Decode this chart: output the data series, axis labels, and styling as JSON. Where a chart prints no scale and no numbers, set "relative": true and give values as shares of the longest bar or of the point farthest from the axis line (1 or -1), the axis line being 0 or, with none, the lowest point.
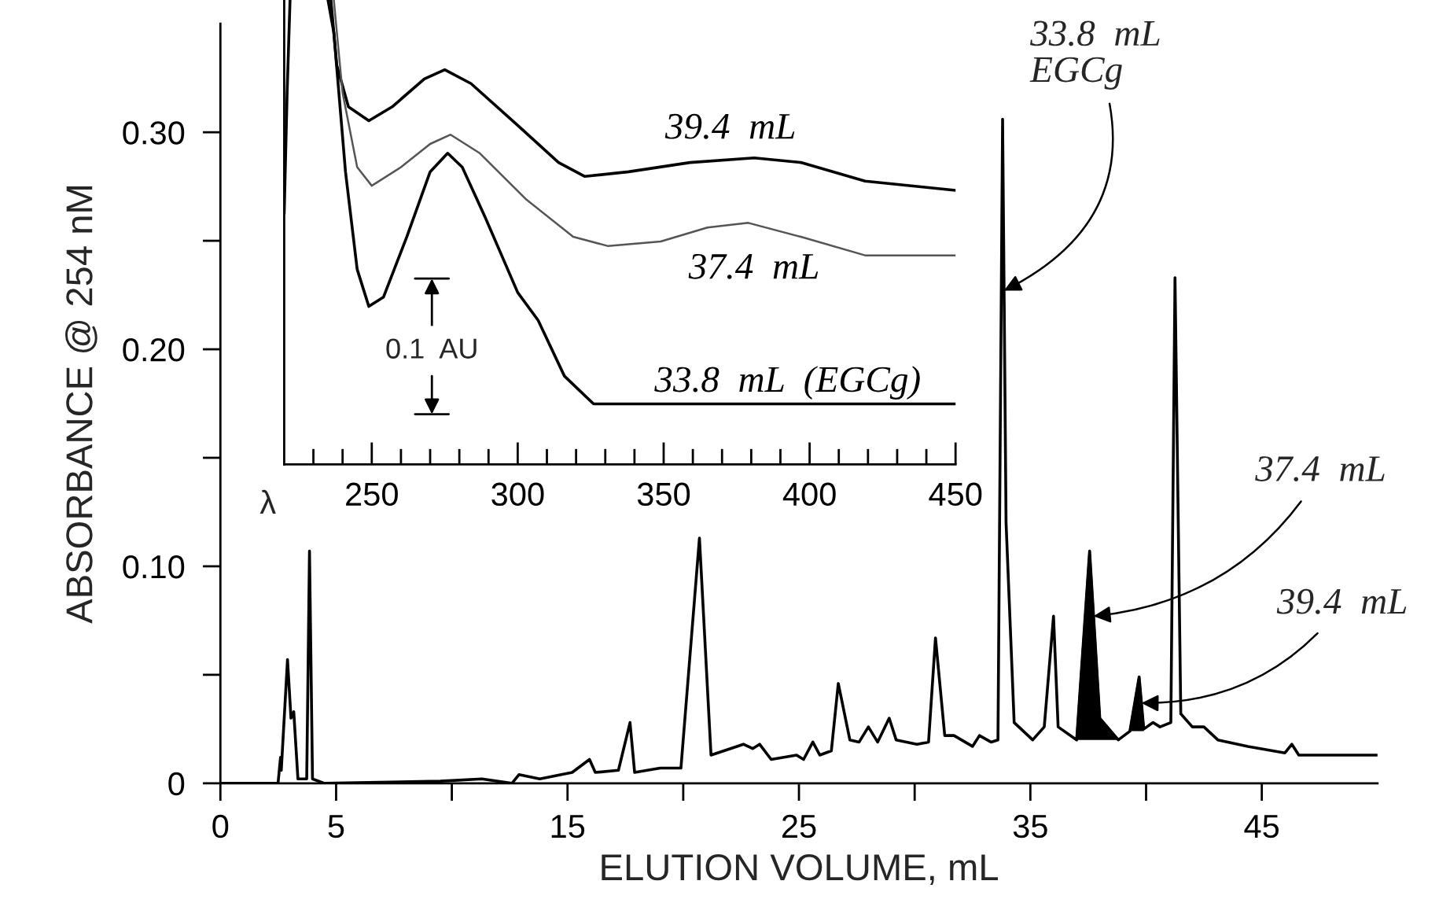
{
  "chart_data": [
    {
      "type": "line",
      "xlabel": "ELUTION VOLUME, mL",
      "ylabel": "ABSORBANCE @ 254 nM",
      "xlim": [
        0,
        50
      ],
      "ylim": [
        0,
        0.35
      ],
      "xticks": [
        0,
        5,
        {
          "value": 10,
          "label": null
        },
        15,
        {
          "value": 20,
          "label": null
        },
        25,
        {
          "value": 30,
          "label": null
        },
        35,
        {
          "value": 40,
          "label": null
        },
        45
      ],
      "yticks": [
        0,
        {
          "value": 0.05,
          "label": null
        },
        {
          "value": 0.1,
          "label": "0.10"
        },
        {
          "value": 0.15,
          "label": null
        },
        {
          "value": 0.2,
          "label": "0.20"
        },
        {
          "value": 0.25,
          "label": null
        },
        {
          "value": 0.3,
          "label": "0.30"
        }
      ],
      "series": [
        {
          "color": "#000000",
          "x": [
            0,
            2.49,
            2.6,
            2.63,
            2.9,
            3.05,
            3.17,
            3.35,
            3.73,
            3.85,
            3.98,
            4.5,
            9.5,
            11.3,
            12.6,
            12.9,
            13.8,
            15.2,
            15.95,
            16.2,
            17.2,
            17.7,
            17.9,
            19.0,
            19.9,
            20.7,
            21.2,
            22.6,
            23.0,
            23.3,
            23.8,
            24.9,
            25.2,
            25.6,
            25.9,
            26.4,
            26.7,
            27.2,
            27.6,
            28.0,
            28.4,
            28.9,
            29.2,
            30.1,
            30.6,
            30.9,
            31.3,
            31.7,
            32.5,
            32.8,
            33.3,
            33.6,
            33.8,
            33.95,
            34.3,
            35.1,
            35.6,
            36.0,
            36.2,
            37.0,
            37.56,
            38.0,
            38.8,
            39.3,
            39.7,
            39.9,
            40.3,
            40.6,
            41.07,
            41.25,
            41.5,
            42.0,
            42.5,
            43.1,
            44.4,
            46.0,
            46.3,
            46.6,
            50
          ],
          "values": [
            0,
            0,
            0.012,
            0.006,
            0.057,
            0.03,
            0.033,
            0.002,
            0.002,
            0.107,
            0.002,
            0,
            0.001,
            0.002,
            0,
            0.004,
            0.002,
            0.005,
            0.011,
            0.005,
            0.006,
            0.028,
            0.005,
            0.007,
            0.007,
            0.113,
            0.013,
            0.018,
            0.016,
            0.018,
            0.011,
            0.013,
            0.011,
            0.019,
            0.013,
            0.015,
            0.046,
            0.02,
            0.019,
            0.026,
            0.019,
            0.03,
            0.02,
            0.018,
            0.019,
            0.067,
            0.022,
            0.022,
            0.017,
            0.022,
            0.019,
            0.02,
            0.306,
            0.12,
            0.028,
            0.02,
            0.026,
            0.077,
            0.026,
            0.02,
            0.107,
            0.03,
            0.02,
            0.024,
            0.049,
            0.025,
            0.028,
            0.026,
            0.028,
            0.233,
            0.032,
            0.026,
            0.026,
            0.02,
            0.017,
            0.014,
            0.018,
            0.013,
            0.013
          ]
        },
        {
          "type": "area",
          "color": "#000000",
          "x": [
            37.0,
            37.56,
            38.0,
            38.8
          ],
          "values": [
            0.02,
            0.107,
            0.03,
            0.02
          ]
        },
        {
          "type": "area",
          "color": "#000000",
          "x": [
            39.3,
            39.7,
            39.9
          ],
          "values": [
            0.024,
            0.049,
            0.025
          ]
        }
      ],
      "annotations": [
        {
          "text": "33.8  mL\nEGCg",
          "x": 33.86,
          "y": 0.227
        },
        {
          "text": "37.4  mL",
          "x": 37.73,
          "y": 0.077
        },
        {
          "text": "39.4  mL",
          "x": 39.8,
          "y": 0.037
        }
      ]
    },
    {
      "type": "line",
      "relative": true,
      "xlabel": "λ",
      "tick_labels": "x",
      "xlim": [
        220,
        450
      ],
      "xticks": [
        {
          "value": 230,
          "label": null
        },
        {
          "value": 240,
          "label": null
        },
        250,
        {
          "value": 260,
          "label": null
        },
        {
          "value": 270,
          "label": null
        },
        {
          "value": 280,
          "label": null
        },
        {
          "value": 290,
          "label": null
        },
        300,
        {
          "value": 310,
          "label": null
        },
        {
          "value": 320,
          "label": null
        },
        {
          "value": 330,
          "label": null
        },
        {
          "value": 340,
          "label": null
        },
        350,
        {
          "value": 360,
          "label": null
        },
        {
          "value": 370,
          "label": null
        },
        {
          "value": 380,
          "label": null
        },
        {
          "value": 390,
          "label": null
        },
        400,
        {
          "value": 410,
          "label": null
        },
        {
          "value": 420,
          "label": null
        },
        {
          "value": 430,
          "label": null
        },
        {
          "value": 440,
          "label": null
        },
        450
      ],
      "series": [
        {
          "name": "39.4  mL",
          "color": "#000000",
          "x": [
            236,
            238,
            242,
            249,
            257,
            268,
            275,
            284,
            300,
            314,
            323,
            338,
            359,
            381,
            397,
            419,
            450
          ],
          "values": [
            1.0,
            0.86,
            0.77,
            0.74,
            0.77,
            0.83,
            0.85,
            0.82,
            0.73,
            0.65,
            0.62,
            0.63,
            0.65,
            0.66,
            0.65,
            0.61,
            0.59
          ]
        },
        {
          "name": "37.4  mL",
          "color": "#555555",
          "x": [
            237,
            240,
            245,
            250,
            260,
            270,
            277,
            287,
            303,
            319,
            331,
            349,
            365,
            379,
            397,
            419,
            450
          ],
          "values": [
            1.0,
            0.8,
            0.64,
            0.6,
            0.64,
            0.69,
            0.71,
            0.67,
            0.57,
            0.49,
            0.47,
            0.48,
            0.51,
            0.52,
            0.49,
            0.45,
            0.45
          ]
        },
        {
          "name": "33.8  mL  (EGCg)",
          "color": "#000000",
          "x": [
            220,
            221,
            222,
            228,
            235,
            237,
            241,
            245,
            249,
            254,
            262,
            270,
            276,
            281,
            289,
            300,
            307,
            316,
            326,
            365,
            450
          ],
          "values": [
            0.54,
            0.8,
            1.0,
            null,
            1.0,
            0.93,
            0.63,
            0.42,
            0.34,
            0.36,
            0.49,
            0.63,
            0.67,
            0.64,
            0.53,
            0.37,
            0.31,
            0.19,
            0.13,
            0.13,
            0.13
          ]
        }
      ],
      "annotations": [
        "0.1  AU"
      ]
    }
  ]
}
